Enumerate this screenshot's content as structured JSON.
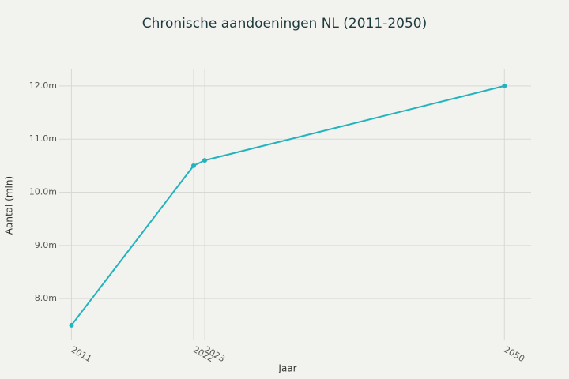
{
  "chart_data": {
    "type": "line",
    "title": "Chronische aandoeningen NL (2011-2050)",
    "x_label": "Jaar",
    "y_label": "Aantal (mln)",
    "x": [
      2011,
      2022,
      2023,
      2050
    ],
    "series": [
      {
        "name": "Chronische aandoeningen",
        "color": "#22b3be",
        "values": [
          7.5,
          10.5,
          10.6,
          12.0
        ]
      }
    ],
    "xlim": [
      2009.9,
      2052.4
    ],
    "xticks": [
      2011,
      2022,
      2023,
      2050
    ],
    "ylim": [
      7.23,
      12.31
    ],
    "yticks": [
      {
        "value": 8,
        "label": "8.0m"
      },
      {
        "value": 9,
        "label": "9.0m"
      },
      {
        "value": 10,
        "label": "10.0m"
      },
      {
        "value": 11,
        "label": "11.0m"
      },
      {
        "value": 12,
        "label": "12.0m"
      }
    ],
    "grid": true
  }
}
